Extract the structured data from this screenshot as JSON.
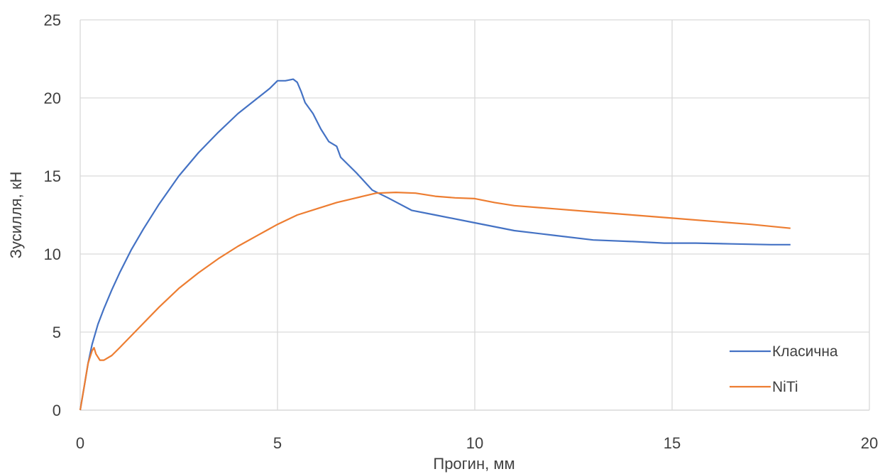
{
  "chart_data": {
    "type": "line",
    "title": "",
    "xlabel": "Прогин, мм",
    "ylabel": "Зусилля, кН",
    "xlim": [
      0,
      20
    ],
    "ylim": [
      0,
      25
    ],
    "xticks": [
      "0",
      "5",
      "10",
      "15",
      "20"
    ],
    "yticks": [
      "0",
      "5",
      "10",
      "15",
      "20",
      "25"
    ],
    "grid": true,
    "legend_position": "bottom-right",
    "series": [
      {
        "name": "Класична",
        "color": "#4472C4",
        "points": [
          [
            0,
            0
          ],
          [
            0.1,
            1.5
          ],
          [
            0.2,
            3.0
          ],
          [
            0.3,
            4.2
          ],
          [
            0.45,
            5.5
          ],
          [
            0.6,
            6.5
          ],
          [
            0.8,
            7.7
          ],
          [
            1.0,
            8.8
          ],
          [
            1.3,
            10.3
          ],
          [
            1.6,
            11.6
          ],
          [
            2.0,
            13.2
          ],
          [
            2.5,
            15.0
          ],
          [
            3.0,
            16.5
          ],
          [
            3.5,
            17.8
          ],
          [
            4.0,
            19.0
          ],
          [
            4.5,
            20.0
          ],
          [
            4.8,
            20.6
          ],
          [
            5.0,
            21.1
          ],
          [
            5.2,
            21.1
          ],
          [
            5.4,
            21.2
          ],
          [
            5.5,
            21.0
          ],
          [
            5.6,
            20.4
          ],
          [
            5.7,
            19.7
          ],
          [
            5.9,
            19.0
          ],
          [
            6.1,
            18.0
          ],
          [
            6.3,
            17.2
          ],
          [
            6.5,
            16.9
          ],
          [
            6.6,
            16.2
          ],
          [
            7.0,
            15.2
          ],
          [
            7.4,
            14.1
          ],
          [
            7.8,
            13.6
          ],
          [
            8.4,
            12.8
          ],
          [
            9.0,
            12.5
          ],
          [
            10.0,
            12.0
          ],
          [
            11.0,
            11.5
          ],
          [
            12.0,
            11.2
          ],
          [
            13.0,
            10.9
          ],
          [
            14.0,
            10.8
          ],
          [
            14.8,
            10.7
          ],
          [
            15.3,
            10.7
          ],
          [
            15.6,
            10.7
          ],
          [
            16.5,
            10.65
          ],
          [
            17.5,
            10.6
          ],
          [
            18.0,
            10.6
          ]
        ]
      },
      {
        "name": "NiTi",
        "color": "#ED7D31",
        "points": [
          [
            0,
            0
          ],
          [
            0.1,
            1.5
          ],
          [
            0.2,
            3.0
          ],
          [
            0.3,
            3.8
          ],
          [
            0.35,
            4.0
          ],
          [
            0.4,
            3.6
          ],
          [
            0.5,
            3.2
          ],
          [
            0.6,
            3.2
          ],
          [
            0.8,
            3.5
          ],
          [
            1.0,
            4.0
          ],
          [
            1.5,
            5.3
          ],
          [
            2.0,
            6.6
          ],
          [
            2.5,
            7.8
          ],
          [
            3.0,
            8.8
          ],
          [
            3.5,
            9.7
          ],
          [
            4.0,
            10.5
          ],
          [
            4.5,
            11.2
          ],
          [
            5.0,
            11.9
          ],
          [
            5.5,
            12.5
          ],
          [
            6.0,
            12.9
          ],
          [
            6.5,
            13.3
          ],
          [
            7.0,
            13.6
          ],
          [
            7.5,
            13.9
          ],
          [
            8.0,
            13.95
          ],
          [
            8.5,
            13.9
          ],
          [
            9.0,
            13.7
          ],
          [
            9.5,
            13.6
          ],
          [
            10.0,
            13.55
          ],
          [
            10.5,
            13.3
          ],
          [
            11.0,
            13.1
          ],
          [
            12.0,
            12.9
          ],
          [
            13.0,
            12.7
          ],
          [
            14.0,
            12.5
          ],
          [
            15.0,
            12.3
          ],
          [
            16.0,
            12.1
          ],
          [
            17.0,
            11.9
          ],
          [
            18.0,
            11.65
          ]
        ]
      }
    ]
  }
}
